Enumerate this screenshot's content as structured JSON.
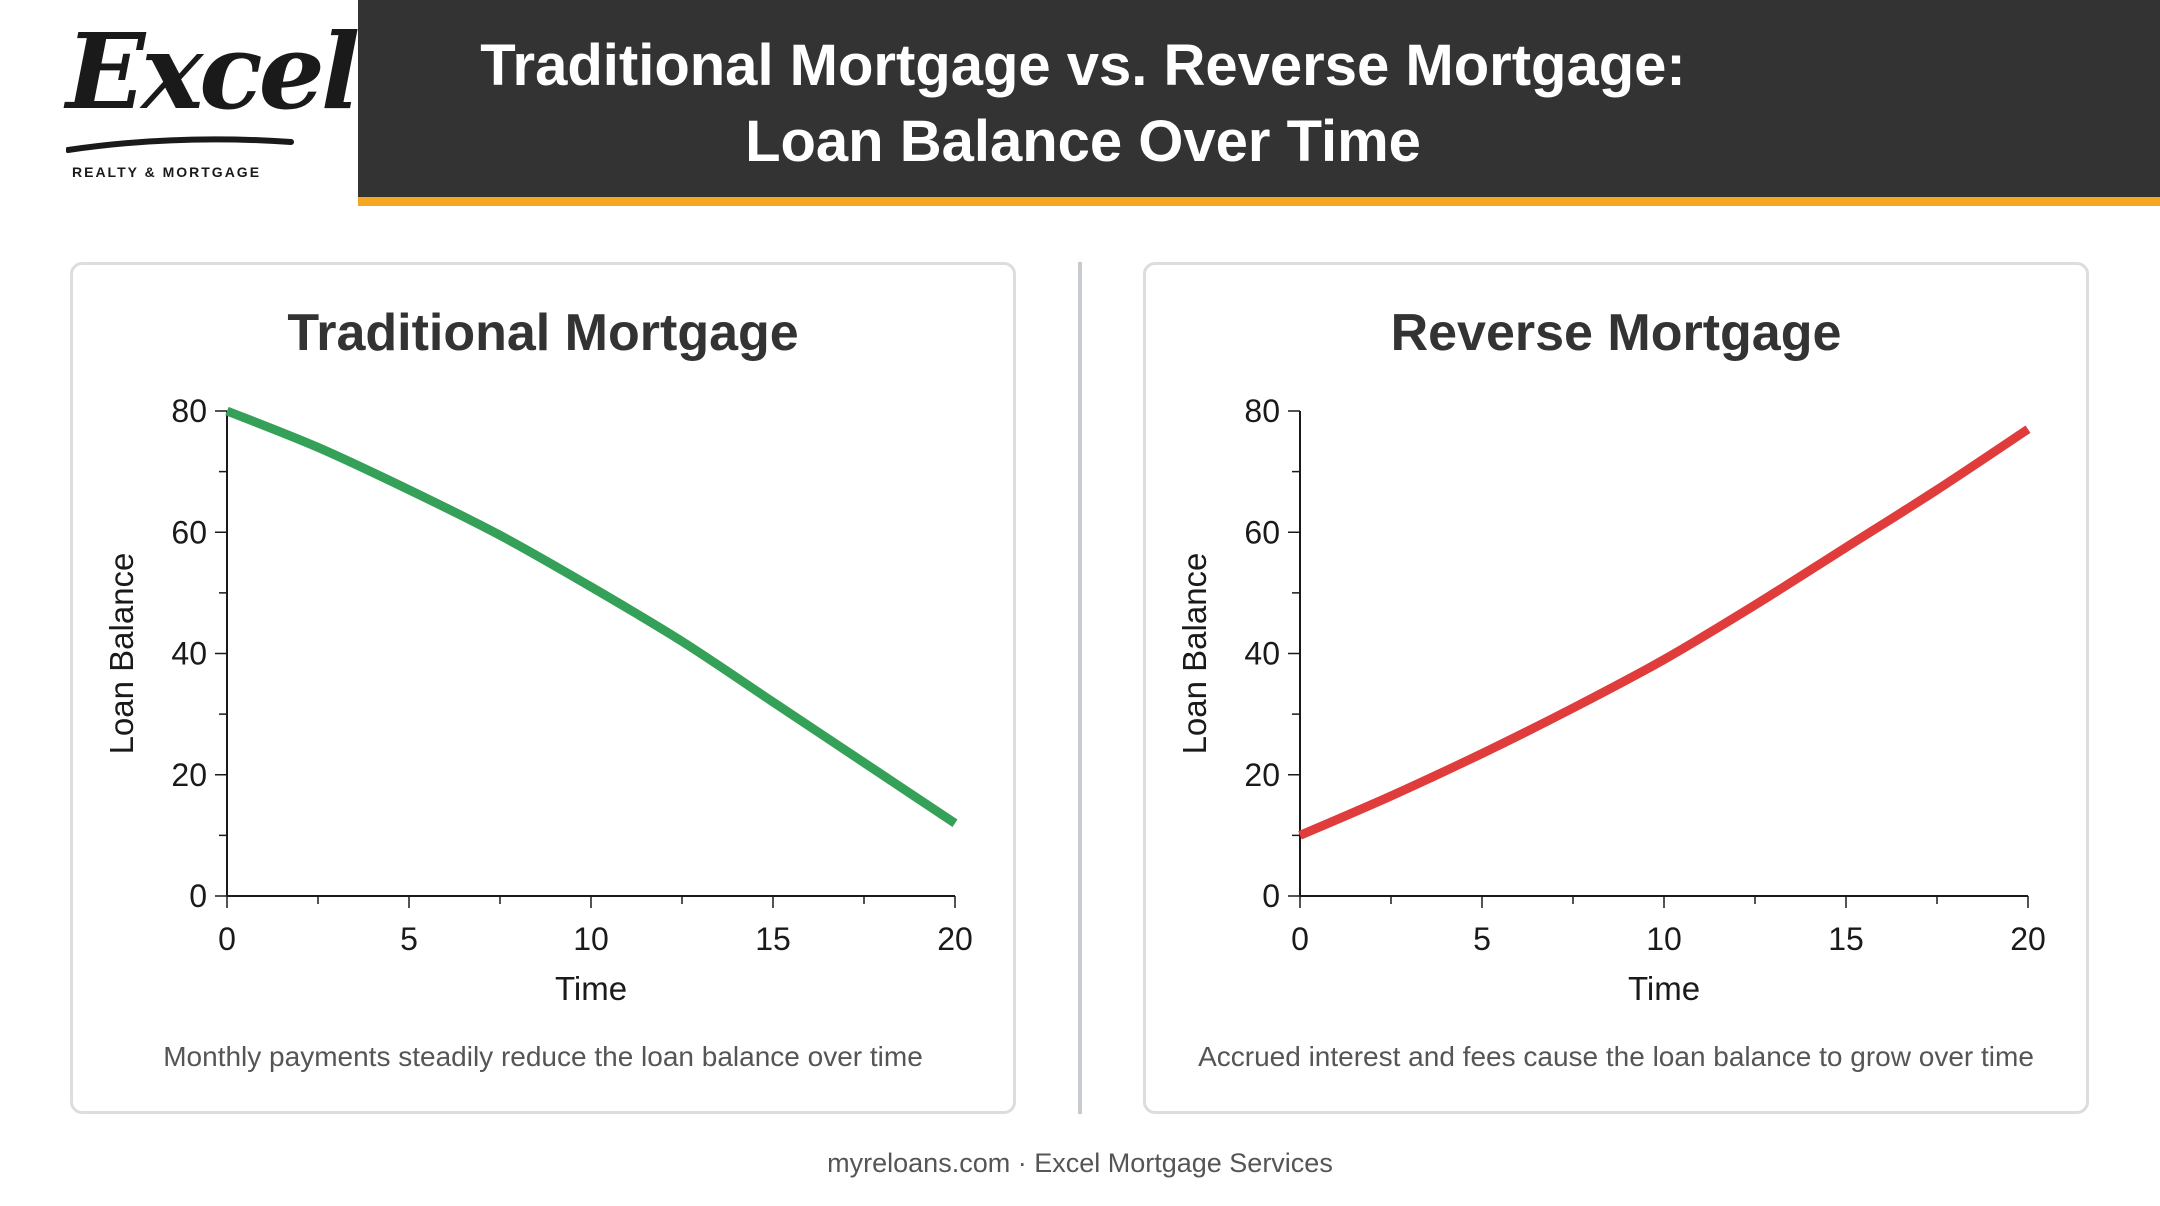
{
  "logo": {
    "script": "Excel",
    "subtitle": "REALTY & MORTGAGE"
  },
  "header": {
    "title_line1": "Traditional Mortgage vs. Reverse Mortgage:",
    "title_line2": "Loan Balance Over Time"
  },
  "colors": {
    "banner": "#333333",
    "accent": "#f5a623",
    "traditional_line": "#34a058",
    "reverse_line": "#e03c3c"
  },
  "footer": {
    "text": "myreloans.com · Excel Mortgage Services"
  },
  "chart_data": [
    {
      "type": "line",
      "title": "Traditional Mortgage",
      "xlabel": "Time",
      "ylabel": "Loan Balance",
      "xlim": [
        0,
        20
      ],
      "ylim": [
        0,
        80
      ],
      "x_ticks": [
        0,
        5,
        10,
        15,
        20
      ],
      "y_ticks": [
        0,
        20,
        40,
        60,
        80
      ],
      "grid": false,
      "caption": "Monthly payments steadily reduce the loan balance over time",
      "series": [
        {
          "color": "#34a058",
          "x": [
            0,
            2.5,
            5,
            7.5,
            10,
            12.5,
            15,
            17.5,
            20
          ],
          "y": [
            80,
            74,
            67,
            59.5,
            51,
            42,
            32,
            22,
            12
          ]
        }
      ]
    },
    {
      "type": "line",
      "title": "Reverse Mortgage",
      "xlabel": "Time",
      "ylabel": "Loan Balance",
      "xlim": [
        0,
        20
      ],
      "ylim": [
        0,
        80
      ],
      "x_ticks": [
        0,
        5,
        10,
        15,
        20
      ],
      "y_ticks": [
        0,
        20,
        40,
        60,
        80
      ],
      "grid": false,
      "caption": "Accrued interest and fees cause the loan balance to grow over time",
      "series": [
        {
          "color": "#e03c3c",
          "x": [
            0,
            2.5,
            5,
            7.5,
            10,
            12.5,
            15,
            17.5,
            20
          ],
          "y": [
            10,
            16.5,
            23.5,
            31,
            39,
            48,
            57.5,
            67,
            77
          ]
        }
      ]
    }
  ]
}
